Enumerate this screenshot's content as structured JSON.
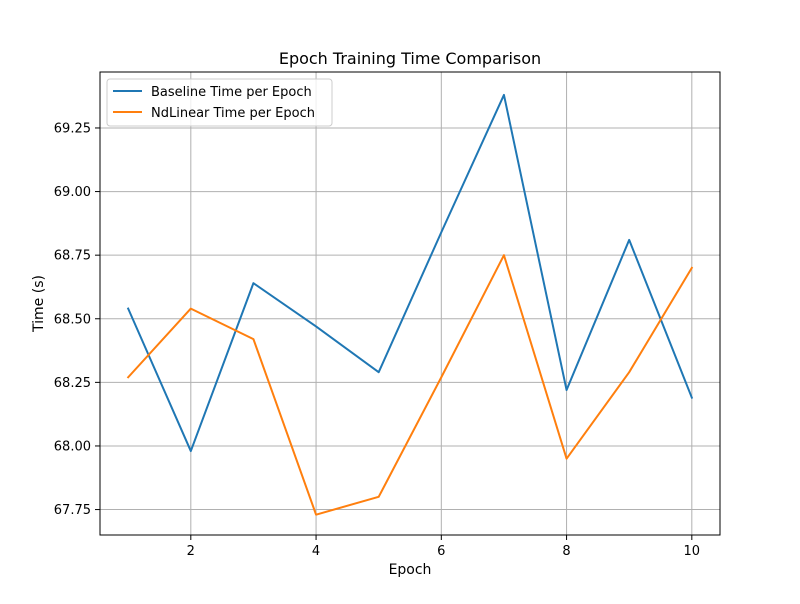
{
  "chart_data": {
    "type": "line",
    "title": "Epoch Training Time Comparison",
    "xlabel": "Epoch",
    "ylabel": "Time (s)",
    "x": [
      1,
      2,
      3,
      4,
      5,
      6,
      7,
      8,
      9,
      10
    ],
    "xlim": [
      0.55,
      10.45
    ],
    "ylim": [
      67.65,
      69.47
    ],
    "x_ticks": [
      2,
      4,
      6,
      8,
      10
    ],
    "y_ticks": [
      67.75,
      68.0,
      68.25,
      68.5,
      68.75,
      69.0,
      69.25
    ],
    "x_tick_labels": [
      "2",
      "4",
      "6",
      "8",
      "10"
    ],
    "y_tick_labels": [
      "67.75",
      "68.00",
      "68.25",
      "68.50",
      "68.75",
      "69.00",
      "69.25"
    ],
    "grid": true,
    "legend_position": "top-left",
    "series": [
      {
        "name": "Baseline Time per Epoch",
        "color": "#1f77b4",
        "values": [
          68.54,
          67.98,
          68.64,
          68.47,
          68.29,
          68.84,
          69.38,
          68.22,
          68.81,
          68.19
        ]
      },
      {
        "name": "NdLinear Time per Epoch",
        "color": "#ff7f0e",
        "values": [
          68.27,
          68.54,
          68.42,
          67.73,
          67.8,
          68.27,
          68.75,
          67.95,
          68.29,
          68.7
        ]
      }
    ]
  }
}
